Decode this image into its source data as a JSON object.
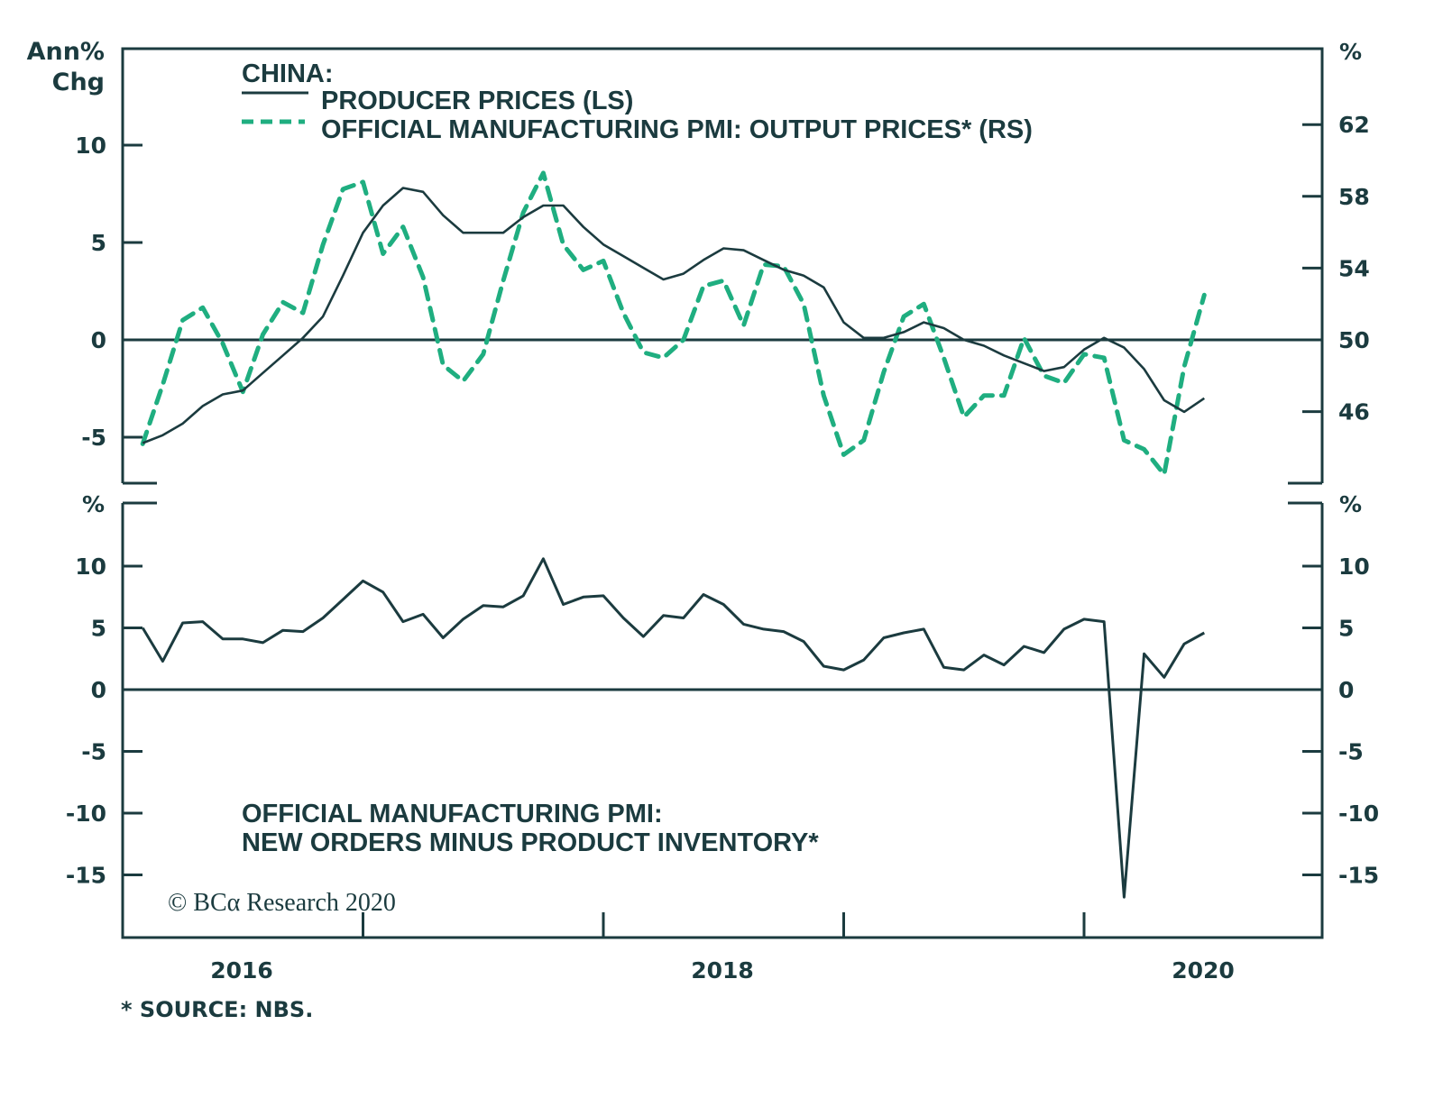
{
  "chart_data": [
    {
      "type": "line",
      "panel": "top",
      "title": "CHINA:",
      "legend": [
        {
          "name": "PRODUCER PRICES (LS)",
          "style": "solid",
          "color": "#1b3b3f"
        },
        {
          "name": "OFFICIAL MANUFACTURING PMI: OUTPUT PRICES* (RS)",
          "style": "dashed",
          "color": "#1fae80"
        }
      ],
      "legend_position": "top-left",
      "left_axis": {
        "label_line1": "Ann%",
        "label_line2": "Chg",
        "ticks": [
          "10",
          "5",
          "0",
          "-5"
        ],
        "tick_values": [
          10,
          5,
          0,
          -5
        ],
        "range": [
          -7.5,
          14.6
        ]
      },
      "right_axis": {
        "label": "%",
        "ticks": [
          "62",
          "58",
          "54",
          "50",
          "46"
        ],
        "tick_values": [
          62,
          58,
          54,
          50,
          46
        ],
        "range": [
          42,
          66.6
        ]
      },
      "x_start": "2016-01",
      "series": [
        {
          "name": "PRODUCER PRICES (LS)",
          "axis": "left",
          "values": [
            -5.3,
            -4.9,
            -4.3,
            -3.4,
            -2.8,
            -2.6,
            -1.7,
            -0.8,
            0.1,
            1.2,
            3.3,
            5.5,
            6.9,
            7.8,
            7.6,
            6.4,
            5.5,
            5.5,
            5.5,
            6.3,
            6.9,
            6.9,
            5.8,
            4.9,
            4.3,
            3.7,
            3.1,
            3.4,
            4.1,
            4.7,
            4.6,
            4.1,
            3.6,
            3.3,
            2.7,
            0.9,
            0.1,
            0.1,
            0.4,
            0.9,
            0.6,
            0.0,
            -0.3,
            -0.8,
            -1.2,
            -1.6,
            -1.4,
            -0.5,
            0.1,
            -0.4,
            -1.5,
            -3.1,
            -3.7,
            -3.0
          ]
        },
        {
          "name": "OFFICIAL MANUFACTURING PMI: OUTPUT PRICES* (RS)",
          "axis": "right",
          "values": [
            44.2,
            47.5,
            51.1,
            51.8,
            49.8,
            47.1,
            50.3,
            52.1,
            51.5,
            55.3,
            58.4,
            58.8,
            54.8,
            56.3,
            53.5,
            48.6,
            47.7,
            49.2,
            53.3,
            57.1,
            59.3,
            55.3,
            53.9,
            54.4,
            51.5,
            49.3,
            49.0,
            50.0,
            53.0,
            53.3,
            50.8,
            54.2,
            54.1,
            52.0,
            46.9,
            43.6,
            44.4,
            48.2,
            51.3,
            52.0,
            49.0,
            45.7,
            46.9,
            46.9,
            50.1,
            48.0,
            47.6,
            49.2,
            49.0,
            44.4,
            43.9,
            42.5,
            48.5,
            52.5
          ]
        }
      ]
    },
    {
      "type": "line",
      "panel": "bottom",
      "title": "OFFICIAL MANUFACTURING PMI:",
      "subtitle": "NEW ORDERS MINUS PRODUCT INVENTORY*",
      "left_axis": {
        "label": "%",
        "ticks": [
          "10",
          "5",
          "0",
          "-5",
          "-10",
          "-15"
        ],
        "tick_values": [
          10,
          5,
          0,
          -5,
          -10,
          -15
        ],
        "range": [
          -19.7,
          15.4
        ]
      },
      "right_axis": {
        "label": "%",
        "ticks": [
          "10",
          "5",
          "0",
          "-5",
          "-10",
          "-15"
        ],
        "tick_values": [
          10,
          5,
          0,
          -5,
          -10,
          -15
        ]
      },
      "x_start": "2016-01",
      "series": [
        {
          "name": "NEW ORDERS MINUS PRODUCT INVENTORY",
          "values": [
            5.0,
            2.3,
            5.4,
            5.5,
            4.1,
            4.1,
            3.8,
            4.8,
            4.7,
            5.8,
            7.3,
            8.8,
            7.9,
            5.5,
            6.1,
            4.2,
            5.7,
            6.8,
            6.7,
            7.6,
            10.6,
            6.9,
            7.5,
            7.6,
            5.8,
            4.3,
            6.0,
            5.8,
            7.7,
            6.9,
            5.3,
            4.9,
            4.7,
            3.9,
            1.9,
            1.6,
            2.4,
            4.2,
            4.6,
            4.9,
            1.8,
            1.6,
            2.8,
            2.0,
            3.5,
            3.0,
            4.9,
            5.7,
            5.5,
            -16.8,
            2.9,
            1.0,
            3.7,
            4.6
          ]
        }
      ]
    }
  ],
  "x_axis": {
    "tick_labels": [
      "2016",
      "2018",
      "2020"
    ]
  },
  "credit": "© BCα Research 2020",
  "source_note": "* SOURCE: NBS."
}
